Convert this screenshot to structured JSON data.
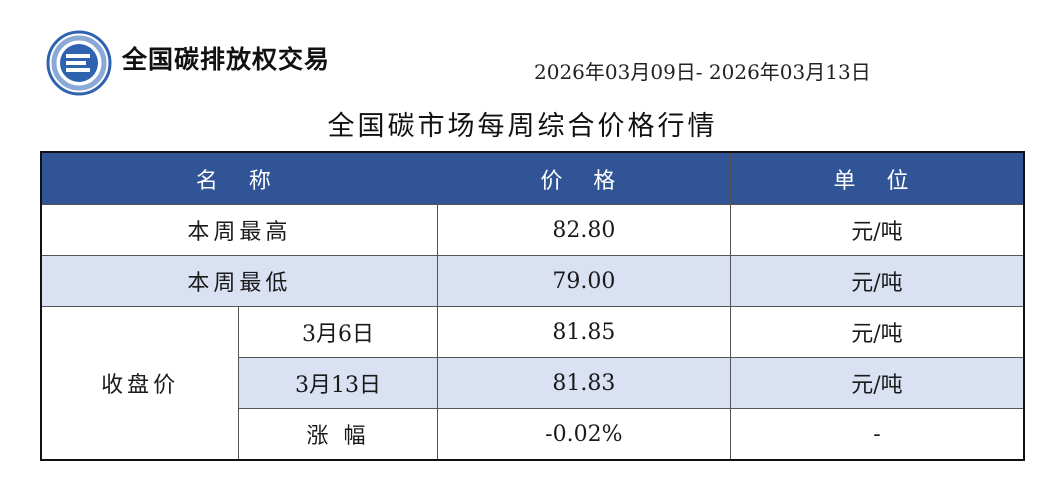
{
  "header": {
    "brand": "全国碳排放权交易",
    "date_range": "2026年03月09日- 2026年03月13日",
    "title": "全国碳市场每周综合价格行情"
  },
  "colors": {
    "header_bg": "#305496",
    "alt_row": "#d9e1f2"
  },
  "table": {
    "columns": [
      "名 称",
      "价 格",
      "单 位"
    ],
    "rows": [
      {
        "name": "本周最高",
        "price": "82.80",
        "unit": "元/吨"
      },
      {
        "name": "本周最低",
        "price": "79.00",
        "unit": "元/吨"
      }
    ],
    "closing": {
      "label": "收盘价",
      "rows": [
        {
          "date": "3月6日",
          "price": "81.85",
          "unit": "元/吨"
        },
        {
          "date": "3月13日",
          "price": "81.83",
          "unit": "元/吨"
        },
        {
          "date": "涨 幅",
          "price": "-0.02%",
          "unit": "-"
        }
      ]
    }
  }
}
